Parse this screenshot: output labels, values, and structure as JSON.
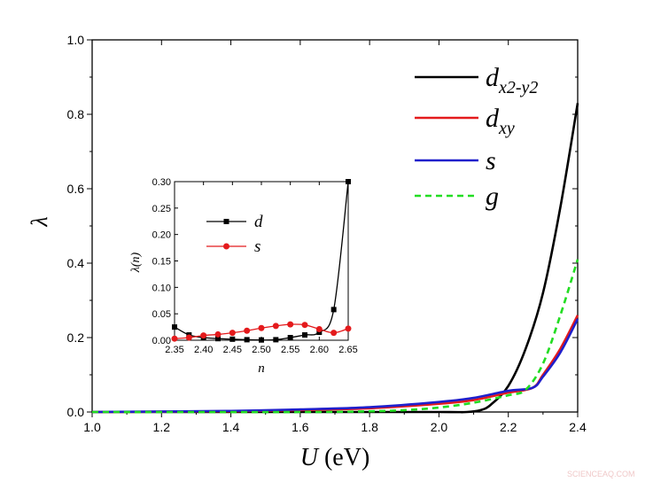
{
  "chart_data": [
    {
      "type": "line",
      "xlabel_var": "U",
      "xlabel_unit": "(eV)",
      "ylabel": "λ",
      "xlim": [
        1.0,
        2.4
      ],
      "ylim": [
        0.0,
        1.0
      ],
      "xticks": [
        "1.0",
        "1.2",
        "1.4",
        "1.6",
        "1.8",
        "2.0",
        "2.2",
        "2.4"
      ],
      "yticks": [
        "0.0",
        "0.2",
        "0.4",
        "0.6",
        "0.8",
        "1.0"
      ],
      "legend_placement": "top-right",
      "series": [
        {
          "name": "d",
          "sub": "x2-y2",
          "color": "#000000",
          "dash": false,
          "x": [
            1.0,
            1.6,
            2.0,
            2.08,
            2.12,
            2.15,
            2.2,
            2.25,
            2.3,
            2.35,
            2.4
          ],
          "y": [
            0,
            0,
            0,
            0,
            0.005,
            0.02,
            0.07,
            0.17,
            0.32,
            0.55,
            0.83
          ]
        },
        {
          "name": "d",
          "sub": "xy",
          "color": "#e41a1c",
          "dash": false,
          "x": [
            1.0,
            1.4,
            1.6,
            1.8,
            2.0,
            2.1,
            2.2,
            2.27,
            2.3,
            2.35,
            2.4
          ],
          "y": [
            0,
            0.002,
            0.005,
            0.01,
            0.022,
            0.032,
            0.052,
            0.065,
            0.1,
            0.17,
            0.26
          ]
        },
        {
          "name": "s",
          "sub": "",
          "color": "#1f1fcc",
          "dash": false,
          "x": [
            1.0,
            1.4,
            1.6,
            1.8,
            2.0,
            2.1,
            2.2,
            2.27,
            2.3,
            2.35,
            2.4
          ],
          "y": [
            0,
            0.003,
            0.007,
            0.013,
            0.027,
            0.038,
            0.057,
            0.065,
            0.095,
            0.16,
            0.25
          ]
        },
        {
          "name": "g",
          "sub": "",
          "color": "#22dd22",
          "dash": true,
          "x": [
            1.0,
            1.6,
            1.8,
            1.9,
            2.0,
            2.1,
            2.2,
            2.25,
            2.3,
            2.35,
            2.4
          ],
          "y": [
            0,
            0,
            0.002,
            0.005,
            0.012,
            0.025,
            0.045,
            0.06,
            0.13,
            0.26,
            0.41
          ]
        }
      ]
    },
    {
      "type": "line",
      "xlabel": "n",
      "ylabel": "λ(n)",
      "xlim": [
        2.35,
        2.65
      ],
      "ylim": [
        0.0,
        0.3
      ],
      "xticks": [
        "2.35",
        "2.40",
        "2.45",
        "2.50",
        "2.55",
        "2.60",
        "2.65"
      ],
      "yticks": [
        "0.00",
        "0.05",
        "0.10",
        "0.15",
        "0.20",
        "0.25",
        "0.30"
      ],
      "legend_placement": "top-left",
      "series": [
        {
          "name": "d",
          "color": "#000000",
          "marker": "square",
          "x": [
            2.35,
            2.375,
            2.4,
            2.425,
            2.45,
            2.475,
            2.5,
            2.525,
            2.55,
            2.575,
            2.6,
            2.625,
            2.65
          ],
          "y": [
            0.025,
            0.01,
            0.005,
            0.003,
            0.002,
            0.001,
            0.0005,
            0.001,
            0.005,
            0.01,
            0.015,
            0.058,
            0.3
          ]
        },
        {
          "name": "s",
          "color": "#e41a1c",
          "marker": "circle",
          "x": [
            2.35,
            2.375,
            2.4,
            2.425,
            2.45,
            2.475,
            2.5,
            2.525,
            2.55,
            2.575,
            2.6,
            2.625,
            2.65
          ],
          "y": [
            0.003,
            0.005,
            0.009,
            0.011,
            0.014,
            0.018,
            0.023,
            0.027,
            0.03,
            0.029,
            0.021,
            0.014,
            0.022
          ]
        }
      ]
    }
  ],
  "watermark": "SCIENCEAQ.COM"
}
